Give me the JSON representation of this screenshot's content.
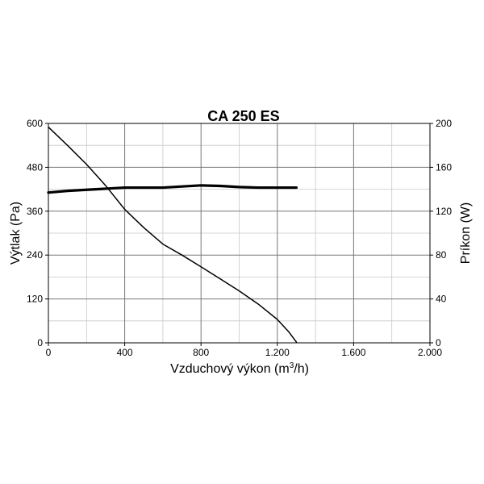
{
  "chart_data": {
    "type": "line",
    "title": "CA 250 ES",
    "xlabel": "Vzduchový výkon (m",
    "xlabel_sup": "3",
    "xlabel_tail": "/h)",
    "ylabel_left": "Výtlak (Pa)",
    "ylabel_right": "Príkon (W)",
    "xlim": [
      0,
      2000
    ],
    "ylim_left": [
      0,
      600
    ],
    "ylim_right": [
      0,
      200
    ],
    "x_ticks": [
      0,
      400,
      800,
      1200,
      1600,
      2000
    ],
    "x_tick_labels": [
      "0",
      "400",
      "800",
      "1.200",
      "1.600",
      "2.000"
    ],
    "x_minor_step": 200,
    "y_left_ticks": [
      0,
      120,
      240,
      360,
      480,
      600
    ],
    "y_left_tick_labels": [
      "0",
      "120",
      "240",
      "360",
      "480",
      "600"
    ],
    "y_right_ticks": [
      0,
      40,
      80,
      120,
      160,
      200
    ],
    "y_right_tick_labels": [
      "0",
      "40",
      "80",
      "120",
      "160",
      "200"
    ],
    "y_minor_step_left": 60,
    "grid": true,
    "series": [
      {
        "axis": "left",
        "color": "#000000",
        "style": "thin",
        "points": [
          [
            0,
            590
          ],
          [
            100,
            540
          ],
          [
            200,
            488
          ],
          [
            300,
            430
          ],
          [
            400,
            365
          ],
          [
            500,
            315
          ],
          [
            600,
            270
          ],
          [
            700,
            240
          ],
          [
            800,
            208
          ],
          [
            900,
            175
          ],
          [
            1000,
            142
          ],
          [
            1100,
            106
          ],
          [
            1200,
            64
          ],
          [
            1260,
            30
          ],
          [
            1300,
            2
          ]
        ]
      },
      {
        "axis": "right",
        "color": "#000000",
        "style": "thick",
        "points": [
          [
            0,
            137
          ],
          [
            100,
            138.5
          ],
          [
            200,
            139.5
          ],
          [
            300,
            140.5
          ],
          [
            400,
            141.5
          ],
          [
            500,
            141.5
          ],
          [
            600,
            141.5
          ],
          [
            700,
            142.5
          ],
          [
            800,
            143.5
          ],
          [
            900,
            143
          ],
          [
            1000,
            142
          ],
          [
            1100,
            141.5
          ],
          [
            1200,
            141.5
          ],
          [
            1300,
            141.5
          ]
        ]
      }
    ]
  }
}
